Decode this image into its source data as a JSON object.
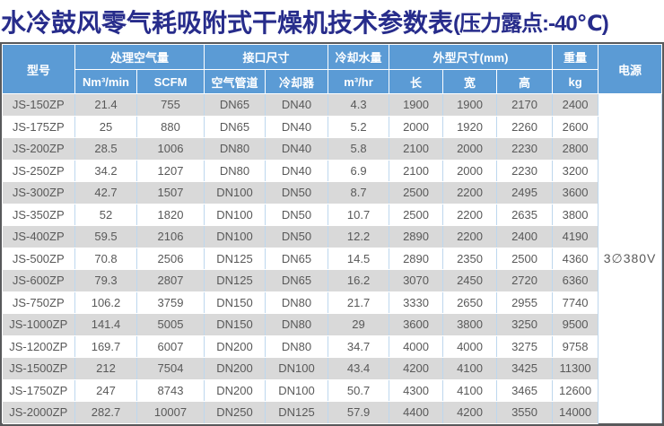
{
  "title": {
    "main": "水冷鼓风零气耗吸附式干燥机技术参数表",
    "suffix": "(压力露点:-40℃)"
  },
  "colors": {
    "title_text": "#272C8B",
    "header_bg": "#5B9BD5",
    "row_alt_bg": "#D9D9D9",
    "row_bg": "#FFFFFF",
    "grid_line": "#BDD7EE",
    "frame_border": "#58595B",
    "cell_text": "#595959"
  },
  "table": {
    "header": {
      "model": "型号",
      "air_volume_group": "处理空气量",
      "air_volume_units": [
        "Nm³/min",
        "SCFM"
      ],
      "interface_group": "接口尺寸",
      "interface_cols": [
        "空气管道",
        "冷却器"
      ],
      "cooling_water_group": "冷却水量",
      "cooling_water_unit": "m³/hr",
      "dimensions_group": "外型尺寸(mm)",
      "dimension_cols": [
        "长",
        "宽",
        "高"
      ],
      "weight_group": "重量",
      "weight_unit": "kg",
      "power": "电源"
    },
    "power_value": "3∅380V",
    "rows": [
      [
        "JS-150ZP",
        "21.4",
        "755",
        "DN65",
        "DN40",
        "4.3",
        "1900",
        "1900",
        "2170",
        "2400"
      ],
      [
        "JS-175ZP",
        "25",
        "880",
        "DN65",
        "DN40",
        "5.2",
        "2000",
        "1920",
        "2260",
        "2600"
      ],
      [
        "JS-200ZP",
        "28.5",
        "1006",
        "DN80",
        "DN40",
        "5.8",
        "2100",
        "2000",
        "2230",
        "2800"
      ],
      [
        "JS-250ZP",
        "34.2",
        "1207",
        "DN80",
        "DN40",
        "6.9",
        "2100",
        "2000",
        "2230",
        "3200"
      ],
      [
        "JS-300ZP",
        "42.7",
        "1507",
        "DN100",
        "DN50",
        "8.7",
        "2500",
        "2200",
        "2495",
        "3600"
      ],
      [
        "JS-350ZP",
        "52",
        "1820",
        "DN100",
        "DN50",
        "10.7",
        "2500",
        "2200",
        "2635",
        "3800"
      ],
      [
        "JS-400ZP",
        "59.5",
        "2106",
        "DN100",
        "DN50",
        "12.2",
        "2890",
        "2200",
        "2400",
        "4190"
      ],
      [
        "JS-500ZP",
        "70.8",
        "2506",
        "DN125",
        "DN65",
        "14.5",
        "2890",
        "2350",
        "2500",
        "4360"
      ],
      [
        "JS-600ZP",
        "79.3",
        "2807",
        "DN125",
        "DN65",
        "16.2",
        "3070",
        "2450",
        "2720",
        "6360"
      ],
      [
        "JS-750ZP",
        "106.2",
        "3759",
        "DN150",
        "DN80",
        "21.7",
        "3330",
        "2650",
        "2955",
        "7740"
      ],
      [
        "JS-1000ZP",
        "141.4",
        "5005",
        "DN150",
        "DN80",
        "29",
        "3600",
        "3800",
        "3250",
        "9500"
      ],
      [
        "JS-1200ZP",
        "169.7",
        "6007",
        "DN200",
        "DN80",
        "34.7",
        "4000",
        "4000",
        "3275",
        "9758"
      ],
      [
        "JS-1500ZP",
        "212",
        "7504",
        "DN200",
        "DN100",
        "43.4",
        "4200",
        "4100",
        "3425",
        "11300"
      ],
      [
        "JS-1750ZP",
        "247",
        "8743",
        "DN200",
        "DN100",
        "50.7",
        "4300",
        "4100",
        "3465",
        "12600"
      ],
      [
        "JS-2000ZP",
        "282.7",
        "10007",
        "DN250",
        "DN125",
        "57.9",
        "4400",
        "4200",
        "3550",
        "14000"
      ]
    ],
    "column_names": [
      "model",
      "nm3-per-min",
      "scfm",
      "air-pipe",
      "cooler",
      "m3-per-hr",
      "length",
      "width",
      "height",
      "weight-kg"
    ]
  }
}
